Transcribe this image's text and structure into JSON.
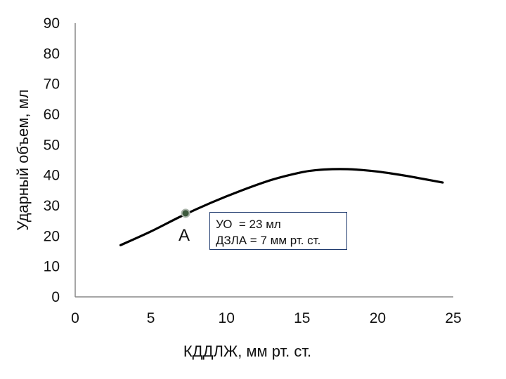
{
  "chart_data": {
    "type": "line",
    "xlabel": "КДДЛЖ, мм рт. ст.",
    "ylabel": "Ударный объем, мл",
    "xlim": [
      0,
      25
    ],
    "ylim": [
      0,
      90
    ],
    "xticks": [
      0,
      5,
      10,
      15,
      20,
      25
    ],
    "yticks": [
      0,
      10,
      20,
      30,
      40,
      50,
      60,
      70,
      80,
      90
    ],
    "grid": false,
    "series": [
      {
        "x": [
          3,
          5,
          7,
          9,
          11,
          13,
          15,
          16,
          17,
          18,
          19,
          20,
          21,
          22,
          23,
          24.3
        ],
        "y": [
          17,
          21.5,
          26.5,
          31,
          35,
          38.5,
          41,
          41.7,
          42,
          42,
          41.7,
          41.2,
          40.5,
          39.7,
          38.8,
          37.6
        ],
        "color": "#000000"
      }
    ],
    "point": {
      "label": "A",
      "x": 7.3,
      "y": 27.5,
      "color": "#3d5a3d"
    },
    "annotation": {
      "lines": [
        "УО  = 23 мл",
        "ДЗЛА = 7 мм рт. ст."
      ]
    }
  }
}
